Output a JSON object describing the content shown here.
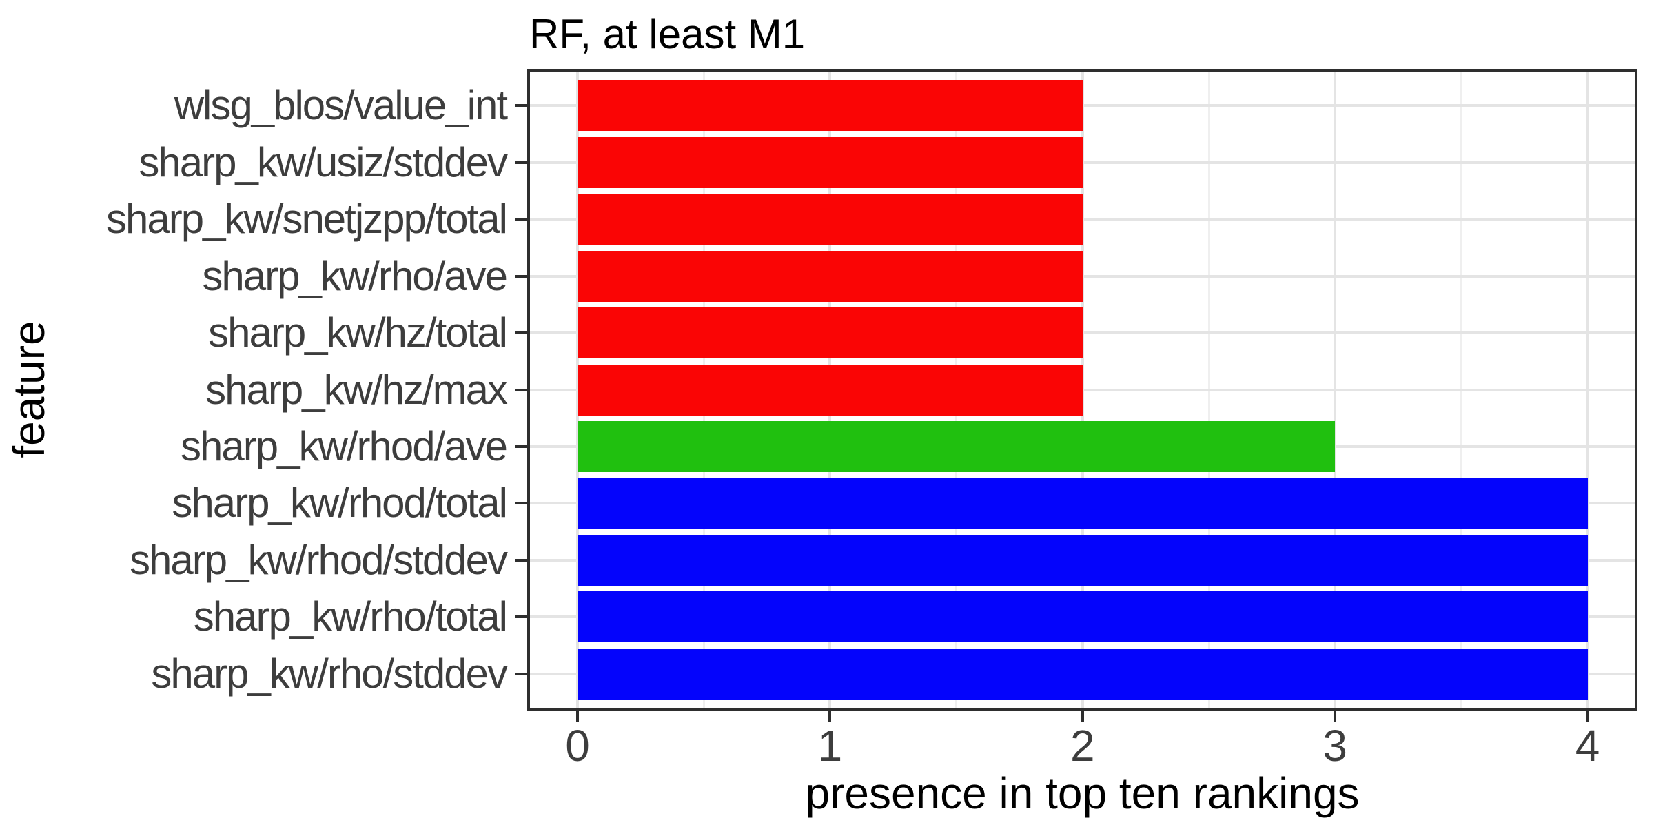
{
  "chart_data": {
    "type": "bar",
    "orientation": "horizontal",
    "title": "RF, at least M1",
    "xlabel": "presence in top ten rankings",
    "ylabel": "feature",
    "categories": [
      "wlsg_blos/value_int",
      "sharp_kw/usiz/stddev",
      "sharp_kw/snetjzpp/total",
      "sharp_kw/rho/ave",
      "sharp_kw/hz/total",
      "sharp_kw/hz/max",
      "sharp_kw/rhod/ave",
      "sharp_kw/rhod/total",
      "sharp_kw/rhod/stddev",
      "sharp_kw/rho/total",
      "sharp_kw/rho/stddev"
    ],
    "values": [
      2,
      2,
      2,
      2,
      2,
      2,
      3,
      4,
      4,
      4,
      4
    ],
    "bar_colors": [
      "#fa0505",
      "#fa0505",
      "#fa0505",
      "#fa0505",
      "#fa0505",
      "#fa0505",
      "#20c00f",
      "#0404fc",
      "#0404fc",
      "#0404fc",
      "#0404fc"
    ],
    "xticks": [
      "0",
      "1",
      "2",
      "3",
      "4"
    ],
    "xlim": [
      0,
      4
    ],
    "grid": true,
    "legend_position": "none"
  },
  "style_colors": {
    "red_bar": "#fa0505",
    "green_bar": "#20c00f",
    "blue_bar": "#0404fc",
    "grid_major": "#e4e4e4",
    "grid_minor": "#efefef",
    "panel_border": "#2e2e2e",
    "axis_text": "#3d3d3d",
    "title_text": "#000000",
    "background": "#ffffff"
  }
}
